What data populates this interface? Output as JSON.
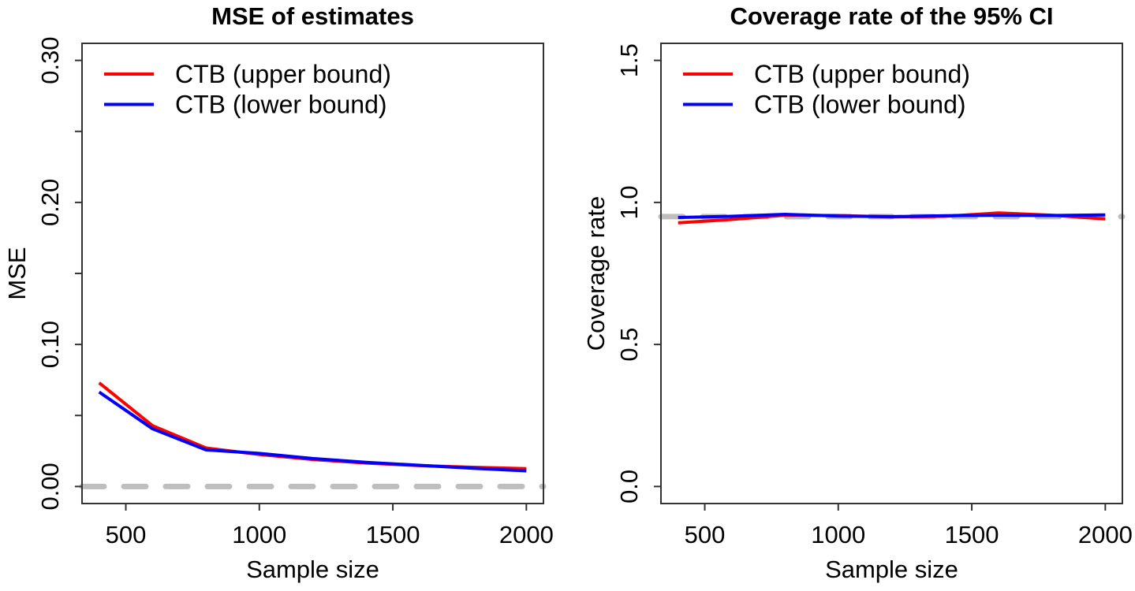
{
  "figure": {
    "background": "#ffffff",
    "box_color": "#333333",
    "text_color": "#000000"
  },
  "chart_data": [
    {
      "type": "line",
      "title": "MSE of estimates",
      "xlabel": "Sample size",
      "ylabel": "MSE",
      "x": [
        400,
        600,
        800,
        1000,
        1200,
        1400,
        1600,
        1800,
        2000
      ],
      "series": [
        {
          "name": "CTB (upper bound)",
          "color": "#ff0000",
          "values": [
            0.073,
            0.0428,
            0.0271,
            0.0225,
            0.019,
            0.0165,
            0.0147,
            0.0135,
            0.0126
          ]
        },
        {
          "name": "CTB (lower bound)",
          "color": "#0000ff",
          "values": [
            0.0665,
            0.0406,
            0.0258,
            0.0233,
            0.0197,
            0.017,
            0.0149,
            0.0128,
            0.011
          ]
        }
      ],
      "reference_line": {
        "y": 0.0,
        "color": "#bebebe",
        "style": "dashed"
      },
      "xlim": [
        336,
        2064
      ],
      "ylim": [
        -0.012,
        0.312
      ],
      "xticks": {
        "values": [
          500,
          1000,
          1500,
          2000
        ],
        "labels": [
          "500",
          "1000",
          "1500",
          "2000"
        ]
      },
      "yticks": {
        "values": [
          0,
          0.05,
          0.1,
          0.15,
          0.2,
          0.25,
          0.3
        ],
        "labels": [
          "0.00",
          "",
          "0.10",
          "",
          "0.20",
          "",
          "0.30"
        ]
      },
      "legend": {
        "position": "top-left",
        "entries": [
          "CTB (upper bound)",
          "CTB (lower bound)"
        ],
        "colors": [
          "#ff0000",
          "#0000ff"
        ]
      },
      "grid": false
    },
    {
      "type": "line",
      "title": "Coverage rate of the 95% CI",
      "xlabel": "Sample size",
      "ylabel": "Coverage rate",
      "x": [
        400,
        600,
        800,
        1000,
        1200,
        1400,
        1600,
        1800,
        2000
      ],
      "series": [
        {
          "name": "CTB (upper bound)",
          "color": "#ff0000",
          "values": [
            0.928,
            0.94,
            0.955,
            0.954,
            0.949,
            0.951,
            0.963,
            0.955,
            0.942
          ]
        },
        {
          "name": "CTB (lower bound)",
          "color": "#0000ff",
          "values": [
            0.947,
            0.951,
            0.958,
            0.952,
            0.95,
            0.953,
            0.955,
            0.954,
            0.956
          ]
        }
      ],
      "reference_line": {
        "y": 0.95,
        "color": "#bebebe",
        "style": "dashed"
      },
      "xlim": [
        336,
        2064
      ],
      "ylim": [
        -0.06,
        1.56
      ],
      "xticks": {
        "values": [
          500,
          1000,
          1500,
          2000
        ],
        "labels": [
          "500",
          "1000",
          "1500",
          "2000"
        ]
      },
      "yticks": {
        "values": [
          0,
          0.5,
          1.0,
          1.5
        ],
        "labels": [
          "0.0",
          "0.5",
          "1.0",
          "1.5"
        ]
      },
      "legend": {
        "position": "top-left",
        "entries": [
          "CTB (upper bound)",
          "CTB (lower bound)"
        ],
        "colors": [
          "#ff0000",
          "#0000ff"
        ]
      },
      "grid": false
    }
  ]
}
